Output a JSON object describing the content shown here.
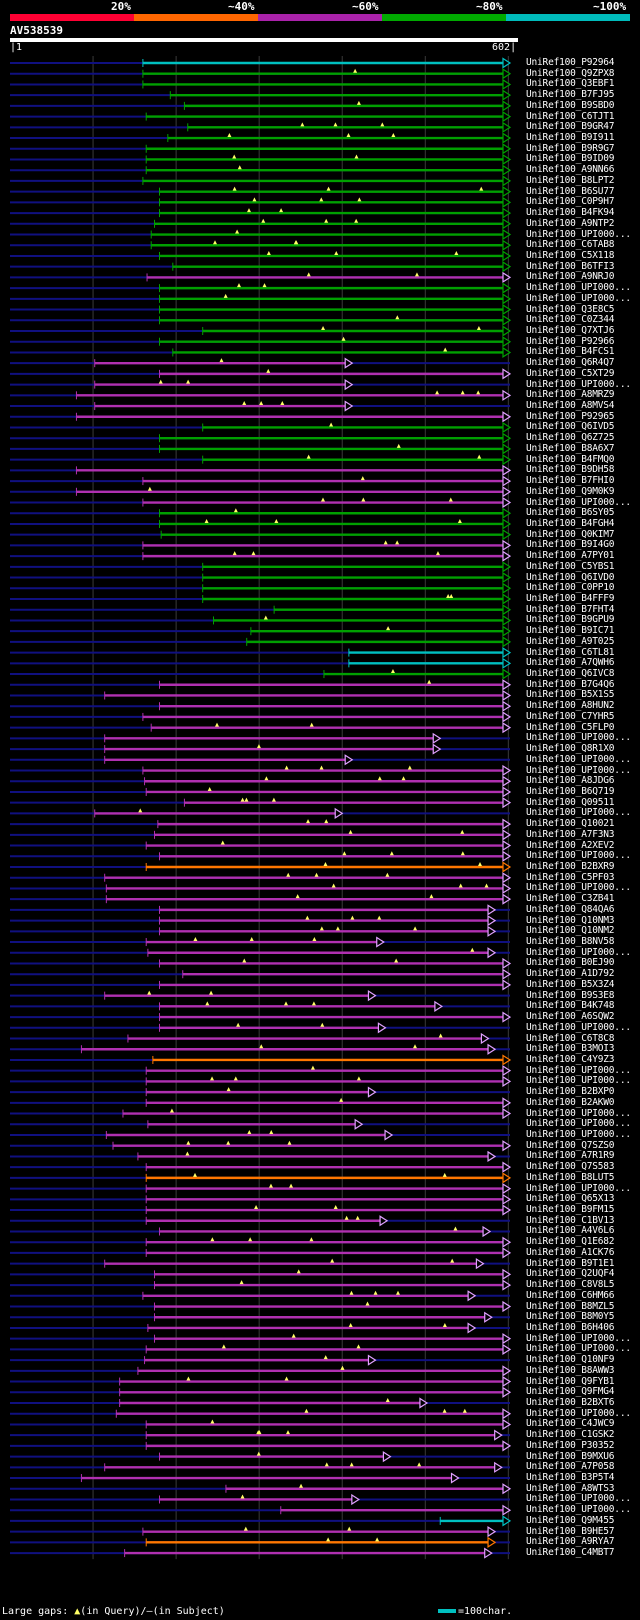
{
  "header": {
    "legend": [
      {
        "label": "20%",
        "color": "#ff0033"
      },
      {
        "label": "~40%",
        "color": "#ff6600"
      },
      {
        "label": "~60%",
        "color": "#aa22aa"
      },
      {
        "label": "~80%",
        "color": "#00aa00"
      },
      {
        "label": "~100%",
        "color": "#00bbbb"
      }
    ],
    "query_id": "AV538539",
    "scale_start": "1",
    "scale_end": "602"
  },
  "colors": {
    "cyan": "#00c0c0",
    "green": "#00a000",
    "magenta": "#b030b0",
    "orange": "#ff7700",
    "navy": "#101080",
    "gap": "#ffff66",
    "grid": "#3a3a3a"
  },
  "hits": [
    {
      "label": "UniRef100_P92964",
      "c": "c",
      "qs": 160,
      "qe": 602,
      "rs": 0,
      "re": 602
    },
    {
      "label": "UniRef100_Q9ZPX8",
      "c": "g",
      "qs": 160,
      "qe": 602,
      "rs": 0,
      "re": 602
    },
    {
      "label": "UniRef100_Q3EBF1",
      "c": "g",
      "qs": 160,
      "qe": 602,
      "rs": 0,
      "re": 602
    },
    {
      "label": "UniRef100_B7FJ95",
      "c": "g",
      "qs": 193,
      "qe": 602,
      "rs": 0,
      "re": 602
    },
    {
      "label": "UniRef100_B9SBD0",
      "c": "g",
      "qs": 210,
      "qe": 602,
      "rs": 0,
      "re": 602
    },
    {
      "label": "UniRef100_C6TJT1",
      "c": "g",
      "qs": 164,
      "qe": 602,
      "rs": 0,
      "re": 602
    },
    {
      "label": "UniRef100_B9GR47",
      "c": "g",
      "qs": 214,
      "qe": 602,
      "rs": 0,
      "re": 602
    },
    {
      "label": "UniRef100_B9I911",
      "c": "g",
      "qs": 190,
      "qe": 602,
      "rs": 0,
      "re": 602
    },
    {
      "label": "UniRef100_B9R9G7",
      "c": "g",
      "qs": 164,
      "qe": 602,
      "rs": 0,
      "re": 602
    },
    {
      "label": "UniRef100_B9ID09",
      "c": "g",
      "qs": 164,
      "qe": 602,
      "rs": 0,
      "re": 602
    },
    {
      "label": "UniRef100_A9NN66",
      "c": "g",
      "qs": 164,
      "qe": 602,
      "rs": 0,
      "re": 602
    },
    {
      "label": "UniRef100_B8LPT2",
      "c": "g",
      "qs": 160,
      "qe": 602,
      "rs": 0,
      "re": 602
    },
    {
      "label": "UniRef100_B6SU77",
      "c": "g",
      "qs": 180,
      "qe": 602,
      "rs": 0,
      "re": 602
    },
    {
      "label": "UniRef100_C0P9H7",
      "c": "g",
      "qs": 180,
      "qe": 602,
      "rs": 0,
      "re": 602
    },
    {
      "label": "UniRef100_B4FK94",
      "c": "g",
      "qs": 180,
      "qe": 602,
      "rs": 0,
      "re": 602
    },
    {
      "label": "UniRef100_A9NTP2",
      "c": "g",
      "qs": 174,
      "qe": 602,
      "rs": 0,
      "re": 602
    },
    {
      "label": "UniRef100_UPI000...",
      "c": "g",
      "qs": 170,
      "qe": 602,
      "rs": 0,
      "re": 602
    },
    {
      "label": "UniRef100_C6TAB8",
      "c": "g",
      "qs": 170,
      "qe": 602,
      "rs": 0,
      "re": 602
    },
    {
      "label": "UniRef100_C5X118",
      "c": "g",
      "qs": 180,
      "qe": 602,
      "rs": 0,
      "re": 602
    },
    {
      "label": "UniRef100_B6TFI3",
      "c": "g",
      "qs": 196,
      "qe": 602,
      "rs": 0,
      "re": 602
    },
    {
      "label": "UniRef100_A9NRJ0",
      "c": "m",
      "qs": 165,
      "qe": 602,
      "rs": 0,
      "re": 602
    },
    {
      "label": "UniRef100_UPI000...",
      "c": "g",
      "qs": 180,
      "qe": 602,
      "rs": 0,
      "re": 602
    },
    {
      "label": "UniRef100_UPI000...",
      "c": "g",
      "qs": 180,
      "qe": 602,
      "rs": 0,
      "re": 602
    },
    {
      "label": "UniRef100_Q3E8C5",
      "c": "g",
      "qs": 180,
      "qe": 602,
      "rs": 0,
      "re": 602
    },
    {
      "label": "UniRef100_C0Z344",
      "c": "g",
      "qs": 180,
      "qe": 602,
      "rs": 0,
      "re": 602
    },
    {
      "label": "UniRef100_Q7XTJ6",
      "c": "g",
      "qs": 232,
      "qe": 602,
      "rs": 0,
      "re": 602
    },
    {
      "label": "UniRef100_P92966",
      "c": "g",
      "qs": 180,
      "qe": 602,
      "rs": 0,
      "re": 602
    },
    {
      "label": "UniRef100_B4FCS1",
      "c": "g",
      "qs": 196,
      "qe": 602,
      "rs": 0,
      "re": 602
    },
    {
      "label": "UniRef100_Q6R4Q7",
      "c": "m",
      "qs": 102,
      "qe": 412,
      "rs": 0,
      "re": 602
    },
    {
      "label": "UniRef100_C5XT29",
      "c": "m",
      "qs": 180,
      "qe": 602,
      "rs": 0,
      "re": 602
    },
    {
      "label": "UniRef100_UPI000...",
      "c": "m",
      "qs": 102,
      "qe": 412,
      "rs": 0,
      "re": 602
    },
    {
      "label": "UniRef100_A8MRZ9",
      "c": "m",
      "qs": 80,
      "qe": 602,
      "rs": 0,
      "re": 602
    },
    {
      "label": "UniRef100_A8MVS4",
      "c": "m",
      "qs": 102,
      "qe": 412,
      "rs": 0,
      "re": 602
    },
    {
      "label": "UniRef100_P92965",
      "c": "m",
      "qs": 80,
      "qe": 602,
      "rs": 0,
      "re": 602
    },
    {
      "label": "UniRef100_Q6IVD5",
      "c": "g",
      "qs": 232,
      "qe": 602,
      "rs": 0,
      "re": 602
    },
    {
      "label": "UniRef100_Q6Z725",
      "c": "g",
      "qs": 180,
      "qe": 602,
      "rs": 0,
      "re": 602
    },
    {
      "label": "UniRef100_B8A6X7",
      "c": "g",
      "qs": 180,
      "qe": 602,
      "rs": 0,
      "re": 602
    },
    {
      "label": "UniRef100_B4FMQ0",
      "c": "g",
      "qs": 232,
      "qe": 602,
      "rs": 0,
      "re": 602
    },
    {
      "label": "UniRef100_B9DH58",
      "c": "m",
      "qs": 80,
      "qe": 602,
      "rs": 0,
      "re": 602
    },
    {
      "label": "UniRef100_B7FHI0",
      "c": "m",
      "qs": 160,
      "qe": 602,
      "rs": 0,
      "re": 602
    },
    {
      "label": "UniRef100_Q9M0K9",
      "c": "m",
      "qs": 80,
      "qe": 602,
      "rs": 0,
      "re": 602
    },
    {
      "label": "UniRef100_UPI000...",
      "c": "m",
      "qs": 160,
      "qe": 602,
      "rs": 0,
      "re": 602
    },
    {
      "label": "UniRef100_B6SY05",
      "c": "g",
      "qs": 180,
      "qe": 602,
      "rs": 0,
      "re": 602
    },
    {
      "label": "UniRef100_B4FGH4",
      "c": "g",
      "qs": 180,
      "qe": 602,
      "rs": 0,
      "re": 602
    },
    {
      "label": "UniRef100_Q0KIM7",
      "c": "g",
      "qs": 182,
      "qe": 602,
      "rs": 0,
      "re": 602
    },
    {
      "label": "UniRef100_B9I4G0",
      "c": "m",
      "qs": 160,
      "qe": 602,
      "rs": 0,
      "re": 602
    },
    {
      "label": "UniRef100_A7PY01",
      "c": "m",
      "qs": 160,
      "qe": 602,
      "rs": 0,
      "re": 602
    },
    {
      "label": "UniRef100_C5YBS1",
      "c": "g",
      "qs": 232,
      "qe": 602,
      "rs": 0,
      "re": 602
    },
    {
      "label": "UniRef100_Q6IVD0",
      "c": "g",
      "qs": 232,
      "qe": 602,
      "rs": 0,
      "re": 602
    },
    {
      "label": "UniRef100_C0PP10",
      "c": "g",
      "qs": 232,
      "qe": 602,
      "rs": 0,
      "re": 602
    },
    {
      "label": "UniRef100_B4FFF9",
      "c": "g",
      "qs": 232,
      "qe": 602,
      "rs": 0,
      "re": 602
    },
    {
      "label": "UniRef100_B7FHT4",
      "c": "g",
      "qs": 318,
      "qe": 602,
      "rs": 0,
      "re": 602
    },
    {
      "label": "UniRef100_B9GPU9",
      "c": "g",
      "qs": 245,
      "qe": 602,
      "rs": 0,
      "re": 602
    },
    {
      "label": "UniRef100_B9IC71",
      "c": "g",
      "qs": 290,
      "qe": 602,
      "rs": 0,
      "re": 602
    },
    {
      "label": "UniRef100_A9T025",
      "c": "g",
      "qs": 285,
      "qe": 602,
      "rs": 0,
      "re": 602
    },
    {
      "label": "UniRef100_C6TL81",
      "c": "c",
      "qs": 408,
      "qe": 602,
      "rs": 0,
      "re": 602
    },
    {
      "label": "UniRef100_A7QWH6",
      "c": "c",
      "qs": 408,
      "qe": 602,
      "rs": 0,
      "re": 602
    },
    {
      "label": "UniRef100_Q6IVC8",
      "c": "g",
      "qs": 378,
      "qe": 602,
      "rs": 0,
      "re": 602
    },
    {
      "label": "UniRef100_B7G4Q6",
      "c": "m",
      "qs": 180,
      "qe": 602,
      "rs": 0,
      "re": 602
    },
    {
      "label": "UniRef100_B5X1S5",
      "c": "m",
      "qs": 114,
      "qe": 602,
      "rs": 0,
      "re": 602
    },
    {
      "label": "UniRef100_A8HUN2",
      "c": "m",
      "qs": 180,
      "qe": 602,
      "rs": 0,
      "re": 602
    },
    {
      "label": "UniRef100_C7YHR5",
      "c": "m",
      "qs": 160,
      "qe": 602,
      "rs": 0,
      "re": 602
    },
    {
      "label": "UniRef100_C5FLP0",
      "c": "m",
      "qs": 170,
      "qe": 602,
      "rs": 0,
      "re": 602
    },
    {
      "label": "UniRef100_UPI000...",
      "c": "m",
      "qs": 114,
      "qe": 518,
      "rs": 0,
      "re": 602
    },
    {
      "label": "UniRef100_Q8R1X0",
      "c": "m",
      "qs": 114,
      "qe": 518,
      "rs": 0,
      "re": 602
    },
    {
      "label": "UniRef100_UPI000...",
      "c": "m",
      "qs": 114,
      "qe": 412,
      "rs": 0,
      "re": 602
    },
    {
      "label": "UniRef100_UPI000...",
      "c": "m",
      "qs": 160,
      "qe": 602,
      "rs": 0,
      "re": 602
    },
    {
      "label": "UniRef100_A8JDG6",
      "c": "m",
      "qs": 162,
      "qe": 602,
      "rs": 0,
      "re": 602
    },
    {
      "label": "UniRef100_B6Q719",
      "c": "m",
      "qs": 164,
      "qe": 602,
      "rs": 0,
      "re": 602
    },
    {
      "label": "UniRef100_Q09511",
      "c": "m",
      "qs": 210,
      "qe": 602,
      "rs": 0,
      "re": 602
    },
    {
      "label": "UniRef100_UPI000...",
      "c": "m",
      "qs": 102,
      "qe": 400,
      "rs": 0,
      "re": 602
    },
    {
      "label": "UniRef100_Q10021",
      "c": "m",
      "qs": 178,
      "qe": 602,
      "rs": 0,
      "re": 602
    },
    {
      "label": "UniRef100_A7F3N3",
      "c": "m",
      "qs": 174,
      "qe": 602,
      "rs": 0,
      "re": 602
    },
    {
      "label": "UniRef100_A2XEV2",
      "c": "m",
      "qs": 164,
      "qe": 602,
      "rs": 0,
      "re": 602
    },
    {
      "label": "UniRef100_UPI000...",
      "c": "m",
      "qs": 180,
      "qe": 602,
      "rs": 0,
      "re": 602
    },
    {
      "label": "UniRef100_B2BXR9",
      "c": "o",
      "qs": 164,
      "qe": 602,
      "rs": 0,
      "re": 602
    },
    {
      "label": "UniRef100_C5PF03",
      "c": "m",
      "qs": 114,
      "qe": 602,
      "rs": 0,
      "re": 602
    },
    {
      "label": "UniRef100_UPI000...",
      "c": "m",
      "qs": 116,
      "qe": 602,
      "rs": 0,
      "re": 602
    },
    {
      "label": "UniRef100_C3ZB41",
      "c": "m",
      "qs": 116,
      "qe": 602,
      "rs": 0,
      "re": 602
    },
    {
      "label": "UniRef100_Q84QA6",
      "c": "m",
      "qs": 180,
      "qe": 584,
      "rs": 0,
      "re": 602
    },
    {
      "label": "UniRef100_Q10NM3",
      "c": "m",
      "qs": 180,
      "qe": 584,
      "rs": 0,
      "re": 602
    },
    {
      "label": "UniRef100_Q10NM2",
      "c": "m",
      "qs": 180,
      "qe": 584,
      "rs": 0,
      "re": 602
    },
    {
      "label": "UniRef100_B8NV58",
      "c": "m",
      "qs": 164,
      "qe": 450,
      "rs": 0,
      "re": 602
    },
    {
      "label": "UniRef100_UPI000...",
      "c": "m",
      "qs": 166,
      "qe": 584,
      "rs": 0,
      "re": 602
    },
    {
      "label": "UniRef100_B0EJ90",
      "c": "m",
      "qs": 180,
      "qe": 602,
      "rs": 0,
      "re": 602
    },
    {
      "label": "UniRef100_A1D792",
      "c": "m",
      "qs": 208,
      "qe": 602,
      "rs": 0,
      "re": 602
    },
    {
      "label": "UniRef100_B5X3Z4",
      "c": "m",
      "qs": 180,
      "qe": 602,
      "rs": 0,
      "re": 602
    },
    {
      "label": "UniRef100_B9S3E8",
      "c": "m",
      "qs": 114,
      "qe": 440,
      "rs": 0,
      "re": 602
    },
    {
      "label": "UniRef100_B4K748",
      "c": "m",
      "qs": 180,
      "qe": 520,
      "rs": 0,
      "re": 602
    },
    {
      "label": "UniRef100_A6SQW2",
      "c": "m",
      "qs": 180,
      "qe": 602,
      "rs": 0,
      "re": 602
    },
    {
      "label": "UniRef100_UPI000...",
      "c": "m",
      "qs": 180,
      "qe": 452,
      "rs": 0,
      "re": 602
    },
    {
      "label": "UniRef100_C6T8C8",
      "c": "m",
      "qs": 142,
      "qe": 576,
      "rs": 0,
      "re": 602
    },
    {
      "label": "UniRef100_B3MOI3",
      "c": "m",
      "qs": 86,
      "qe": 584,
      "rs": 0,
      "re": 602
    },
    {
      "label": "UniRef100_C4Y9Z3",
      "c": "o",
      "qs": 172,
      "qe": 602,
      "rs": 0,
      "re": 602
    },
    {
      "label": "UniRef100_UPI000...",
      "c": "m",
      "qs": 164,
      "qe": 602,
      "rs": 0,
      "re": 602
    },
    {
      "label": "UniRef100_UPI000...",
      "c": "m",
      "qs": 164,
      "qe": 602,
      "rs": 0,
      "re": 602
    },
    {
      "label": "UniRef100_B2BXP0",
      "c": "m",
      "qs": 164,
      "qe": 440,
      "rs": 0,
      "re": 602
    },
    {
      "label": "UniRef100_B2AKW0",
      "c": "m",
      "qs": 164,
      "qe": 602,
      "rs": 0,
      "re": 602
    },
    {
      "label": "UniRef100_UPI000...",
      "c": "m",
      "qs": 136,
      "qe": 602,
      "rs": 0,
      "re": 602
    },
    {
      "label": "UniRef100_UPI000...",
      "c": "m",
      "qs": 166,
      "qe": 424,
      "rs": 0,
      "re": 602
    },
    {
      "label": "UniRef100_UPI000...",
      "c": "m",
      "qs": 116,
      "qe": 460,
      "rs": 0,
      "re": 602
    },
    {
      "label": "UniRef100_Q7SZS0",
      "c": "m",
      "qs": 124,
      "qe": 602,
      "rs": 0,
      "re": 602
    },
    {
      "label": "UniRef100_A7R1R9",
      "c": "m",
      "qs": 154,
      "qe": 584,
      "rs": 0,
      "re": 602
    },
    {
      "label": "UniRef100_Q7S583",
      "c": "m",
      "qs": 164,
      "qe": 602,
      "rs": 0,
      "re": 602
    },
    {
      "label": "UniRef100_B8LUT5",
      "c": "o",
      "qs": 164,
      "qe": 602,
      "rs": 0,
      "re": 602
    },
    {
      "label": "UniRef100_UPI000...",
      "c": "m",
      "qs": 164,
      "qe": 602,
      "rs": 0,
      "re": 602
    },
    {
      "label": "UniRef100_Q65X13",
      "c": "m",
      "qs": 164,
      "qe": 602,
      "rs": 0,
      "re": 602
    },
    {
      "label": "UniRef100_B9FM15",
      "c": "m",
      "qs": 164,
      "qe": 602,
      "rs": 0,
      "re": 602
    },
    {
      "label": "UniRef100_C1BV13",
      "c": "m",
      "qs": 164,
      "qe": 454,
      "rs": 0,
      "re": 602
    },
    {
      "label": "UniRef100_A4V6L6",
      "c": "m",
      "qs": 180,
      "qe": 578,
      "rs": 0,
      "re": 602
    },
    {
      "label": "UniRef100_Q1E682",
      "c": "m",
      "qs": 164,
      "qe": 602,
      "rs": 0,
      "re": 602
    },
    {
      "label": "UniRef100_A1CK76",
      "c": "m",
      "qs": 164,
      "qe": 602,
      "rs": 0,
      "re": 602
    },
    {
      "label": "UniRef100_B9T1E1",
      "c": "m",
      "qs": 114,
      "qe": 570,
      "rs": 0,
      "re": 602
    },
    {
      "label": "UniRef100_Q2UQF4",
      "c": "m",
      "qs": 174,
      "qe": 602,
      "rs": 0,
      "re": 602
    },
    {
      "label": "UniRef100_C8V8L5",
      "c": "m",
      "qs": 174,
      "qe": 602,
      "rs": 0,
      "re": 602
    },
    {
      "label": "UniRef100_C6HM66",
      "c": "m",
      "qs": 160,
      "qe": 560,
      "rs": 0,
      "re": 602
    },
    {
      "label": "UniRef100_B8MZL5",
      "c": "m",
      "qs": 174,
      "qe": 602,
      "rs": 0,
      "re": 602
    },
    {
      "label": "UniRef100_B8M0Y5",
      "c": "m",
      "qs": 174,
      "qe": 580,
      "rs": 0,
      "re": 602
    },
    {
      "label": "UniRef100_B6H406",
      "c": "m",
      "qs": 166,
      "qe": 560,
      "rs": 0,
      "re": 602
    },
    {
      "label": "UniRef100_UPI000...",
      "c": "m",
      "qs": 174,
      "qe": 602,
      "rs": 0,
      "re": 602
    },
    {
      "label": "UniRef100_UPI000...",
      "c": "m",
      "qs": 164,
      "qe": 602,
      "rs": 0,
      "re": 602
    },
    {
      "label": "UniRef100_Q10NF9",
      "c": "m",
      "qs": 162,
      "qe": 440,
      "rs": 0,
      "re": 602
    },
    {
      "label": "UniRef100_B8AWW3",
      "c": "m",
      "qs": 154,
      "qe": 602,
      "rs": 0,
      "re": 602
    },
    {
      "label": "UniRef100_Q9FYB1",
      "c": "m",
      "qs": 132,
      "qe": 602,
      "rs": 0,
      "re": 602
    },
    {
      "label": "UniRef100_Q9FMG4",
      "c": "m",
      "qs": 132,
      "qe": 602,
      "rs": 0,
      "re": 602
    },
    {
      "label": "UniRef100_B2BXT6",
      "c": "m",
      "qs": 132,
      "qe": 502,
      "rs": 0,
      "re": 602
    },
    {
      "label": "UniRef100_UPI000...",
      "c": "m",
      "qs": 128,
      "qe": 602,
      "rs": 0,
      "re": 602
    },
    {
      "label": "UniRef100_C4JWC9",
      "c": "m",
      "qs": 164,
      "qe": 602,
      "rs": 0,
      "re": 602
    },
    {
      "label": "UniRef100_C1GSK2",
      "c": "m",
      "qs": 164,
      "qe": 592,
      "rs": 0,
      "re": 602
    },
    {
      "label": "UniRef100_P30352",
      "c": "m",
      "qs": 164,
      "qe": 602,
      "rs": 0,
      "re": 602
    },
    {
      "label": "UniRef100_B9MXU6",
      "c": "m",
      "qs": 180,
      "qe": 458,
      "rs": 0,
      "re": 602
    },
    {
      "label": "UniRef100_A7P058",
      "c": "m",
      "qs": 114,
      "qe": 592,
      "rs": 0,
      "re": 602
    },
    {
      "label": "UniRef100_B3P5T4",
      "c": "m",
      "qs": 86,
      "qe": 540,
      "rs": 0,
      "re": 602
    },
    {
      "label": "UniRef100_A8WTS3",
      "c": "m",
      "qs": 260,
      "qe": 602,
      "rs": 0,
      "re": 602
    },
    {
      "label": "UniRef100_UPI000...",
      "c": "m",
      "qs": 180,
      "qe": 420,
      "rs": 0,
      "re": 602
    },
    {
      "label": "UniRef100_UPI000...",
      "c": "m",
      "qs": 326,
      "qe": 602,
      "rs": 0,
      "re": 602
    },
    {
      "label": "UniRef100_Q9M455",
      "c": "c",
      "qs": 518,
      "qe": 602,
      "rs": 0,
      "re": 602
    },
    {
      "label": "UniRef100_B9HE57",
      "c": "m",
      "qs": 160,
      "qe": 584,
      "rs": 0,
      "re": 602
    },
    {
      "label": "UniRef100_A9RYA7",
      "c": "o",
      "qs": 164,
      "qe": 584,
      "rs": 0,
      "re": 602
    },
    {
      "label": "UniRef100_C4MBT7",
      "c": "m",
      "qs": 138,
      "qe": 580,
      "rs": 0,
      "re": 602
    }
  ],
  "footer": {
    "gaps_label": "Large gaps:",
    "gaps_query_mark": "▲",
    "gaps_query_text": "(in Query)/",
    "gaps_subject_mark": "—",
    "gaps_subject_text": "(in Subject)",
    "scale_text": "=100char."
  }
}
